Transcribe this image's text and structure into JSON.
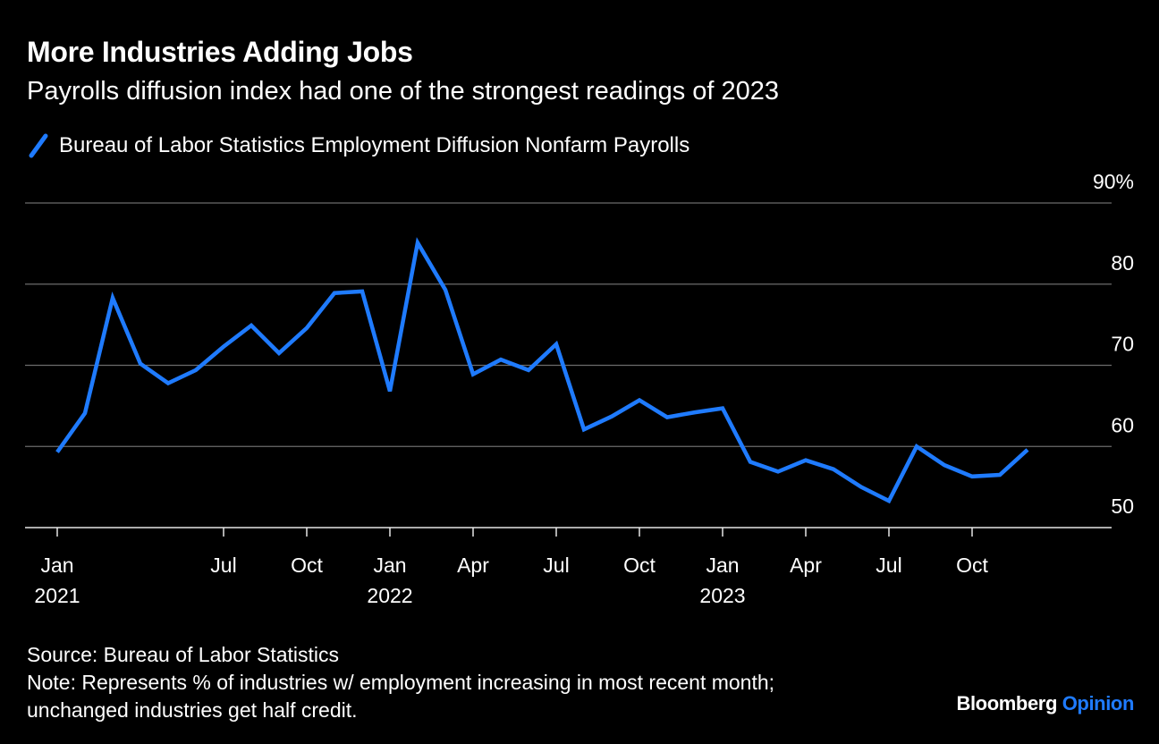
{
  "header": {
    "title": "More Industries Adding Jobs",
    "subtitle": "Payrolls diffusion index had one of the strongest readings of 2023"
  },
  "legend": {
    "label": "Bureau of Labor Statistics Employment Diffusion Nonfarm Payrolls",
    "color": "#1f7bff"
  },
  "footer": {
    "source": "Source: Bureau of Labor Statistics",
    "note_line1": "Note: Represents % of industries w/ employment increasing in most recent month;",
    "note_line2": "unchanged industries get half credit."
  },
  "brand": {
    "part1": "Bloomberg",
    "part2": "Opinion"
  },
  "chart_data": {
    "type": "line",
    "title": "More Industries Adding Jobs",
    "subtitle": "Payrolls diffusion index had one of the strongest readings of 2023",
    "ylim": [
      50,
      90
    ],
    "y_ticks": [
      {
        "value": 90,
        "label": "90%"
      },
      {
        "value": 80,
        "label": "80"
      },
      {
        "value": 70,
        "label": "70"
      },
      {
        "value": 60,
        "label": "60"
      },
      {
        "value": 50,
        "label": "50"
      }
    ],
    "x_ticks": [
      {
        "month": "2021-01",
        "line1": "Jan",
        "line2": "2021"
      },
      {
        "month": "2021-07",
        "line1": "Jul",
        "line2": ""
      },
      {
        "month": "2021-10",
        "line1": "Oct",
        "line2": ""
      },
      {
        "month": "2022-01",
        "line1": "Jan",
        "line2": "2022"
      },
      {
        "month": "2022-04",
        "line1": "Apr",
        "line2": ""
      },
      {
        "month": "2022-07",
        "line1": "Jul",
        "line2": ""
      },
      {
        "month": "2022-10",
        "line1": "Oct",
        "line2": ""
      },
      {
        "month": "2023-01",
        "line1": "Jan",
        "line2": "2023"
      },
      {
        "month": "2023-04",
        "line1": "Apr",
        "line2": ""
      },
      {
        "month": "2023-07",
        "line1": "Jul",
        "line2": ""
      },
      {
        "month": "2023-10",
        "line1": "Oct",
        "line2": ""
      }
    ],
    "grid": true,
    "series": [
      {
        "name": "Bureau of Labor Statistics Employment Diffusion Nonfarm Payrolls",
        "color": "#1f7bff",
        "x": [
          "2021-01",
          "2021-02",
          "2021-03",
          "2021-04",
          "2021-05",
          "2021-06",
          "2021-07",
          "2021-08",
          "2021-09",
          "2021-10",
          "2021-11",
          "2021-12",
          "2022-01",
          "2022-02",
          "2022-03",
          "2022-04",
          "2022-05",
          "2022-06",
          "2022-07",
          "2022-08",
          "2022-09",
          "2022-10",
          "2022-11",
          "2022-12",
          "2023-01",
          "2023-02",
          "2023-03",
          "2023-04",
          "2023-05",
          "2023-06",
          "2023-07",
          "2023-08",
          "2023-09",
          "2023-10",
          "2023-11",
          "2023-12"
        ],
        "values": [
          59.3,
          64.1,
          78.3,
          70.2,
          67.8,
          69.4,
          72.3,
          74.9,
          71.5,
          74.6,
          78.9,
          79.1,
          66.8,
          85.1,
          79.3,
          68.9,
          70.7,
          69.4,
          72.6,
          62.1,
          63.7,
          65.7,
          63.6,
          64.2,
          64.7,
          58.1,
          56.9,
          58.3,
          57.2,
          55.0,
          53.3,
          60.0,
          57.7,
          56.3,
          56.5,
          59.6
        ]
      }
    ]
  }
}
